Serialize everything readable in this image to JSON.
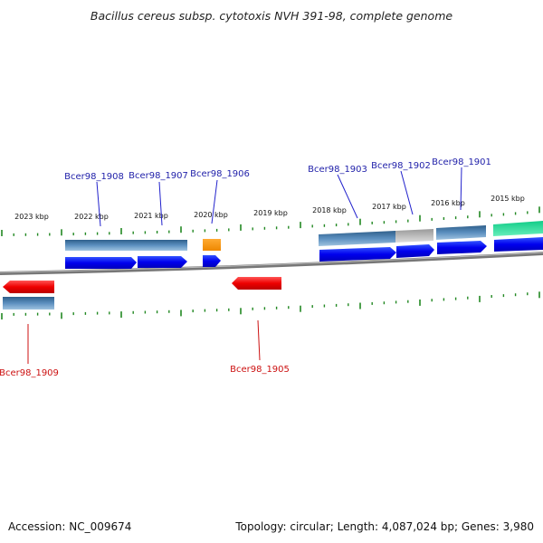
{
  "title": "Bacillus cereus subsp. cytotoxis NVH 391-98, complete genome",
  "footer": {
    "accession": "Accession: NC_009674",
    "summary": "Topology: circular; Length: 4,087,024 bp; Genes: 3,980"
  },
  "colors": {
    "cds": "#0000ee",
    "cds_reverse": "#ee0000",
    "gene": "#4f7fab",
    "gene_gray": "#aaaaaa",
    "trna": "#ff9900",
    "other": "#22dd99",
    "tick": "#228822",
    "backbone": "#888888",
    "label_forward": "#2222aa",
    "label_reverse": "#cc1111"
  },
  "scale_labels": [
    "2023 kbp",
    "2022 kbp",
    "2021 kbp",
    "2020 kbp",
    "2019 kbp",
    "2018 kbp",
    "2017 kbp",
    "2016 kbp",
    "2015 kbp"
  ],
  "gene_labels": {
    "forward": [
      "Bcer98_1908",
      "Bcer98_1907",
      "Bcer98_1906",
      "Bcer98_1903",
      "Bcer98_1902",
      "Bcer98_1901"
    ],
    "reverse": [
      "Bcer98_1909",
      "Bcer98_1905"
    ]
  }
}
